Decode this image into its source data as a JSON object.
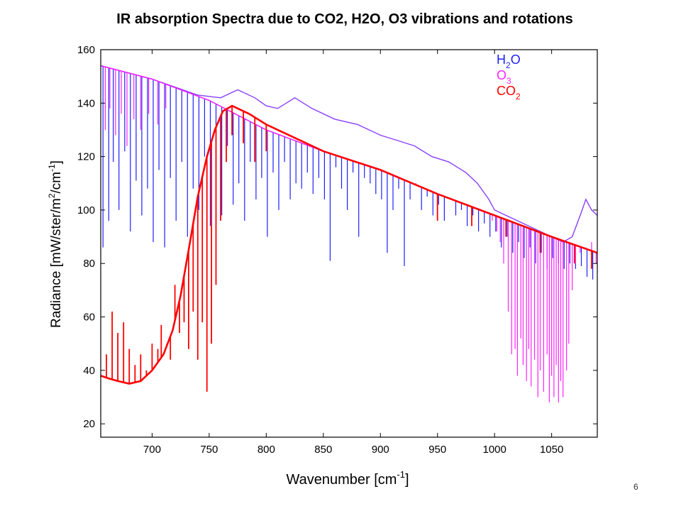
{
  "slide": {
    "title": "IR absorption Spectra due to CO2, H2O, O3 vibrations and rotations",
    "page_number": "6"
  },
  "chart_data": {
    "type": "line",
    "title": "",
    "xlabel": {
      "main": "Wavenumber [cm",
      "sup": "-1",
      "tail": "]"
    },
    "ylabel": {
      "a": "Radiance [mW/ster/m",
      "sup1": "2",
      "b": "/cm",
      "sup2": "-1",
      "c": "]"
    },
    "xlim": [
      655,
      1090
    ],
    "ylim": [
      15,
      160
    ],
    "xticks": [
      700,
      750,
      800,
      850,
      900,
      950,
      1000,
      1050
    ],
    "yticks": [
      20,
      40,
      60,
      80,
      100,
      120,
      140,
      160
    ],
    "grid": false,
    "legend_position": "top-right",
    "legend": [
      {
        "base": "H",
        "sub": "2",
        "tail": "O",
        "color": "#1f1fff"
      },
      {
        "base": "O",
        "sub": "3",
        "tail": "",
        "color": "#ff22ff"
      },
      {
        "base": "CO",
        "sub": "2",
        "tail": "",
        "color": "#ff0000"
      }
    ],
    "series": [
      {
        "name": "H2O",
        "color": "#1f1fff",
        "baseline": [
          [
            655,
            154
          ],
          [
            700,
            149
          ],
          [
            750,
            141
          ],
          [
            800,
            130
          ],
          [
            850,
            122
          ],
          [
            900,
            115
          ],
          [
            950,
            106
          ],
          [
            1000,
            98
          ],
          [
            1050,
            90
          ],
          [
            1090,
            84
          ]
        ],
        "absorption_lines": [
          [
            657,
            86
          ],
          [
            662,
            96
          ],
          [
            666,
            118
          ],
          [
            671,
            100
          ],
          [
            676,
            122
          ],
          [
            681,
            92
          ],
          [
            686,
            111
          ],
          [
            691,
            98
          ],
          [
            696,
            108
          ],
          [
            701,
            88
          ],
          [
            706,
            115
          ],
          [
            711,
            86
          ],
          [
            716,
            112
          ],
          [
            721,
            96
          ],
          [
            726,
            118
          ],
          [
            731,
            90
          ],
          [
            736,
            108
          ],
          [
            741,
            100
          ],
          [
            746,
            120
          ],
          [
            751,
            94
          ],
          [
            756,
            115
          ],
          [
            761,
            98
          ],
          [
            766,
            124
          ],
          [
            771,
            102
          ],
          [
            776,
            110
          ],
          [
            781,
            96
          ],
          [
            786,
            118
          ],
          [
            791,
            104
          ],
          [
            796,
            112
          ],
          [
            801,
            90
          ],
          [
            806,
            114
          ],
          [
            811,
            100
          ],
          [
            816,
            118
          ],
          [
            821,
            104
          ],
          [
            826,
            110
          ],
          [
            831,
            108
          ],
          [
            836,
            114
          ],
          [
            841,
            106
          ],
          [
            846,
            112
          ],
          [
            851,
            104
          ],
          [
            856,
            81
          ],
          [
            861,
            116
          ],
          [
            866,
            108
          ],
          [
            871,
            100
          ],
          [
            876,
            114
          ],
          [
            881,
            90
          ],
          [
            886,
            112
          ],
          [
            891,
            110
          ],
          [
            896,
            106
          ],
          [
            901,
            104
          ],
          [
            906,
            84
          ],
          [
            911,
            100
          ],
          [
            916,
            108
          ],
          [
            921,
            79
          ],
          [
            926,
            104
          ],
          [
            931,
            110
          ],
          [
            936,
            100
          ],
          [
            941,
            105
          ],
          [
            946,
            98
          ],
          [
            951,
            102
          ],
          [
            956,
            96
          ],
          [
            961,
            104
          ],
          [
            966,
            98
          ],
          [
            971,
            100
          ],
          [
            976,
            94
          ],
          [
            981,
            98
          ],
          [
            986,
            92
          ],
          [
            991,
            95
          ],
          [
            996,
            90
          ],
          [
            1001,
            92
          ],
          [
            1006,
            86
          ],
          [
            1011,
            90
          ],
          [
            1016,
            84
          ],
          [
            1021,
            88
          ],
          [
            1026,
            82
          ],
          [
            1031,
            86
          ],
          [
            1036,
            80
          ],
          [
            1041,
            84
          ],
          [
            1046,
            78
          ],
          [
            1051,
            82
          ],
          [
            1056,
            80
          ],
          [
            1061,
            78
          ],
          [
            1066,
            80
          ],
          [
            1071,
            78
          ],
          [
            1076,
            79
          ],
          [
            1081,
            75
          ],
          [
            1086,
            74
          ]
        ]
      },
      {
        "name": "O3",
        "color": "#ff22ff",
        "baseline": [
          [
            655,
            154
          ],
          [
            700,
            149
          ],
          [
            750,
            141
          ],
          [
            800,
            130
          ],
          [
            850,
            122
          ],
          [
            900,
            115
          ],
          [
            950,
            106
          ],
          [
            1000,
            98
          ],
          [
            1050,
            90
          ],
          [
            1090,
            84
          ]
        ],
        "absorption_lines": [
          [
            659,
            130
          ],
          [
            663,
            138
          ],
          [
            668,
            128
          ],
          [
            673,
            136
          ],
          [
            678,
            124
          ],
          [
            684,
            134
          ],
          [
            690,
            130
          ],
          [
            697,
            136
          ],
          [
            705,
            132
          ],
          [
            712,
            138
          ],
          [
            998,
            96
          ],
          [
            1002,
            92
          ],
          [
            1005,
            88
          ],
          [
            1008,
            80
          ],
          [
            1012,
            62
          ],
          [
            1015,
            46
          ],
          [
            1018,
            48
          ],
          [
            1020,
            38
          ],
          [
            1023,
            52
          ],
          [
            1025,
            42
          ],
          [
            1028,
            36
          ],
          [
            1030,
            48
          ],
          [
            1032,
            34
          ],
          [
            1035,
            44
          ],
          [
            1038,
            30
          ],
          [
            1040,
            40
          ],
          [
            1043,
            32
          ],
          [
            1046,
            46
          ],
          [
            1048,
            28
          ],
          [
            1050,
            38
          ],
          [
            1052,
            30
          ],
          [
            1054,
            42
          ],
          [
            1056,
            28
          ],
          [
            1058,
            36
          ],
          [
            1060,
            30
          ],
          [
            1063,
            40
          ],
          [
            1065,
            50
          ],
          [
            1068,
            70
          ],
          [
            1071,
            80
          ],
          [
            1075,
            84
          ],
          [
            1080,
            86
          ],
          [
            1085,
            88
          ],
          [
            1089,
            80
          ]
        ]
      },
      {
        "name": "CO2",
        "color": "#ff0000",
        "envelope": [
          [
            655,
            38
          ],
          [
            662,
            37
          ],
          [
            670,
            36
          ],
          [
            680,
            35
          ],
          [
            690,
            36
          ],
          [
            700,
            40
          ],
          [
            710,
            46
          ],
          [
            718,
            55
          ],
          [
            725,
            68
          ],
          [
            732,
            85
          ],
          [
            740,
            105
          ],
          [
            748,
            120
          ],
          [
            755,
            130
          ],
          [
            762,
            137
          ],
          [
            770,
            139
          ],
          [
            785,
            136
          ],
          [
            800,
            132
          ],
          [
            850,
            122
          ],
          [
            900,
            115
          ],
          [
            950,
            106
          ],
          [
            1000,
            98
          ],
          [
            1050,
            90
          ],
          [
            1090,
            84
          ]
        ],
        "absorption_lines": [
          [
            660,
            46
          ],
          [
            665,
            62
          ],
          [
            670,
            54
          ],
          [
            675,
            58
          ],
          [
            680,
            48
          ],
          [
            685,
            42
          ],
          [
            690,
            46
          ],
          [
            695,
            40
          ],
          [
            700,
            50
          ],
          [
            705,
            48
          ],
          [
            708,
            57
          ],
          [
            713,
            50
          ],
          [
            716,
            44
          ],
          [
            720,
            72
          ],
          [
            724,
            54
          ],
          [
            728,
            58
          ],
          [
            732,
            48
          ],
          [
            736,
            62
          ],
          [
            740,
            44
          ],
          [
            744,
            58
          ],
          [
            748,
            32
          ],
          [
            752,
            50
          ],
          [
            756,
            72
          ],
          [
            760,
            96
          ],
          [
            765,
            118
          ],
          [
            770,
            128
          ],
          [
            780,
            125
          ],
          [
            790,
            118
          ],
          [
            800,
            122
          ],
          [
            950,
            96
          ],
          [
            980,
            94
          ],
          [
            1010,
            90
          ],
          [
            1040,
            84
          ],
          [
            1070,
            80
          ],
          [
            1085,
            78
          ]
        ]
      },
      {
        "name": "",
        "color": "#8a3ffd",
        "points": [
          [
            655,
            154
          ],
          [
            700,
            149
          ],
          [
            740,
            143
          ],
          [
            760,
            142
          ],
          [
            775,
            145
          ],
          [
            790,
            142
          ],
          [
            800,
            139
          ],
          [
            810,
            138
          ],
          [
            825,
            142
          ],
          [
            840,
            138
          ],
          [
            860,
            134
          ],
          [
            880,
            132
          ],
          [
            900,
            128
          ],
          [
            915,
            126
          ],
          [
            930,
            124
          ],
          [
            945,
            120
          ],
          [
            960,
            118
          ],
          [
            975,
            114
          ],
          [
            985,
            110
          ],
          [
            995,
            104
          ],
          [
            1000,
            100
          ],
          [
            1010,
            98
          ],
          [
            1020,
            96
          ],
          [
            1030,
            94
          ],
          [
            1040,
            92
          ],
          [
            1050,
            90
          ],
          [
            1060,
            88
          ],
          [
            1068,
            90
          ],
          [
            1075,
            98
          ],
          [
            1080,
            104
          ],
          [
            1085,
            100
          ],
          [
            1090,
            98
          ]
        ]
      }
    ]
  }
}
